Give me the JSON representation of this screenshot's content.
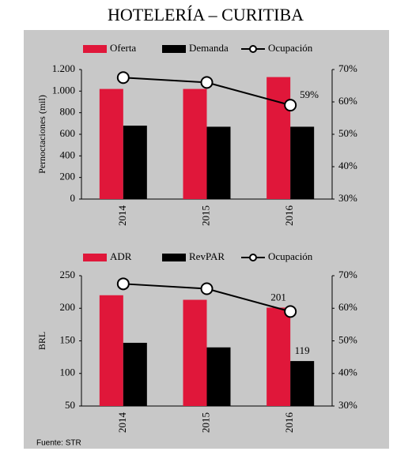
{
  "title": "HOTELERÍA – CURITIBA",
  "source": "Fuente: STR",
  "chart_data": [
    {
      "type": "bar",
      "y_label": "Pernoctaciones (mil)",
      "categories": [
        "2014",
        "2015",
        "2016"
      ],
      "series": [
        {
          "name": "Oferta",
          "color": "#e0173a",
          "values": [
            1020,
            1020,
            1130
          ]
        },
        {
          "name": "Demanda",
          "color": "#000000",
          "values": [
            680,
            670,
            670
          ]
        },
        {
          "name": "Ocupación",
          "type": "line",
          "axis": "y2",
          "color": "#000000",
          "values": [
            67.5,
            66,
            59
          ],
          "value_labels": [
            null,
            null,
            "59%"
          ]
        }
      ],
      "ylim": [
        0,
        1200
      ],
      "yticks": [
        0,
        200,
        400,
        600,
        800,
        {
          "value": 1000,
          "label": "1.000"
        },
        {
          "value": 1200,
          "label": "1.200"
        }
      ],
      "y2lim": [
        30,
        70
      ],
      "y2ticks": [
        {
          "value": 30,
          "label": "30%"
        },
        {
          "value": 40,
          "label": "40%"
        },
        {
          "value": 50,
          "label": "50%"
        },
        {
          "value": 60,
          "label": "60%"
        },
        {
          "value": 70,
          "label": "70%"
        }
      ]
    },
    {
      "type": "bar",
      "y_label": "BRL",
      "categories": [
        "2014",
        "2015",
        "2016"
      ],
      "series": [
        {
          "name": "ADR",
          "color": "#e0173a",
          "values": [
            220,
            213,
            201
          ],
          "value_labels": [
            null,
            null,
            "201"
          ]
        },
        {
          "name": "RevPAR",
          "color": "#000000",
          "values": [
            147,
            140,
            119
          ],
          "value_labels": [
            null,
            null,
            "119"
          ]
        },
        {
          "name": "Ocupación",
          "type": "line",
          "axis": "y2",
          "color": "#000000",
          "values": [
            67.5,
            66,
            59
          ]
        }
      ],
      "ylim": [
        50,
        250
      ],
      "yticks": [
        50,
        100,
        150,
        200,
        250
      ],
      "y2lim": [
        30,
        70
      ],
      "y2ticks": [
        {
          "value": 30,
          "label": "30%"
        },
        {
          "value": 40,
          "label": "40%"
        },
        {
          "value": 50,
          "label": "50%"
        },
        {
          "value": 60,
          "label": "60%"
        },
        {
          "value": 70,
          "label": "70%"
        }
      ]
    }
  ]
}
